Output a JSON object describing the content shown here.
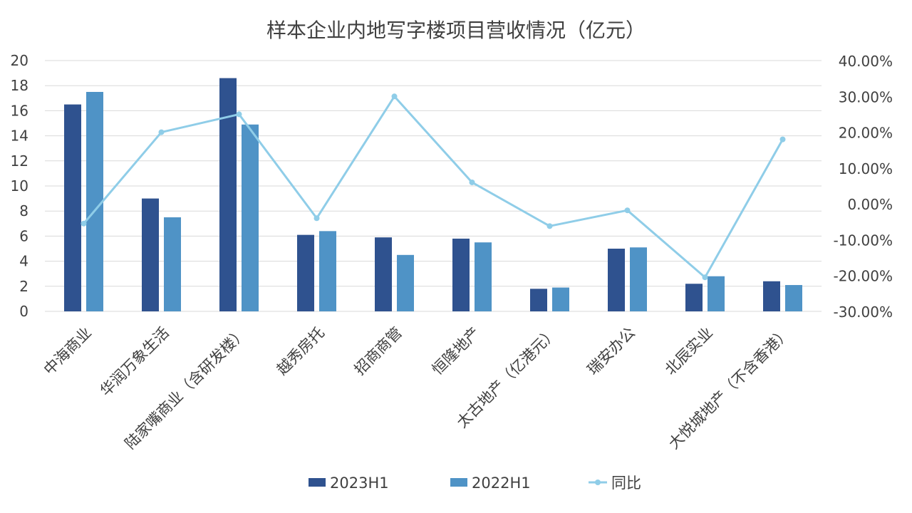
{
  "chart_data": {
    "type": "bar",
    "title": "样本企业内地写字楼项目营收情况（亿元）",
    "categories": [
      "中海商业",
      "华润万象生活",
      "陆家嘴商业（含研发楼）",
      "越秀房托",
      "招商商管",
      "恒隆地产",
      "太古地产（亿港元）",
      "瑞安办公",
      "北辰实业",
      "大悦城地产（不含香港）"
    ],
    "series": [
      {
        "name": "2023H1",
        "type": "bar",
        "axis": "left",
        "color": "#2f528f",
        "values": [
          16.5,
          9.0,
          18.6,
          6.1,
          5.9,
          5.8,
          1.8,
          5.0,
          2.2,
          2.4
        ]
      },
      {
        "name": "2022H1",
        "type": "bar",
        "axis": "left",
        "color": "#4f93c6",
        "values": [
          17.5,
          7.5,
          14.9,
          6.4,
          4.5,
          5.5,
          1.9,
          5.1,
          2.8,
          2.1
        ]
      },
      {
        "name": "同比",
        "type": "line",
        "axis": "right",
        "color": "#8fcde8",
        "values": [
          -5.5,
          20.0,
          25.0,
          -4.0,
          30.0,
          6.0,
          -6.2,
          -1.8,
          -20.5,
          18.0
        ]
      }
    ],
    "y_left": {
      "min": 0,
      "max": 20,
      "step": 2,
      "ticks": [
        "0",
        "2",
        "4",
        "6",
        "8",
        "10",
        "12",
        "14",
        "16",
        "18",
        "20"
      ]
    },
    "y_right": {
      "min": -30,
      "max": 40,
      "step": 10,
      "ticks": [
        "-30.00%",
        "-20.00%",
        "-10.00%",
        "0.00%",
        "10.00%",
        "20.00%",
        "30.00%",
        "40.00%"
      ]
    },
    "grid": true,
    "legend_position": "bottom"
  }
}
